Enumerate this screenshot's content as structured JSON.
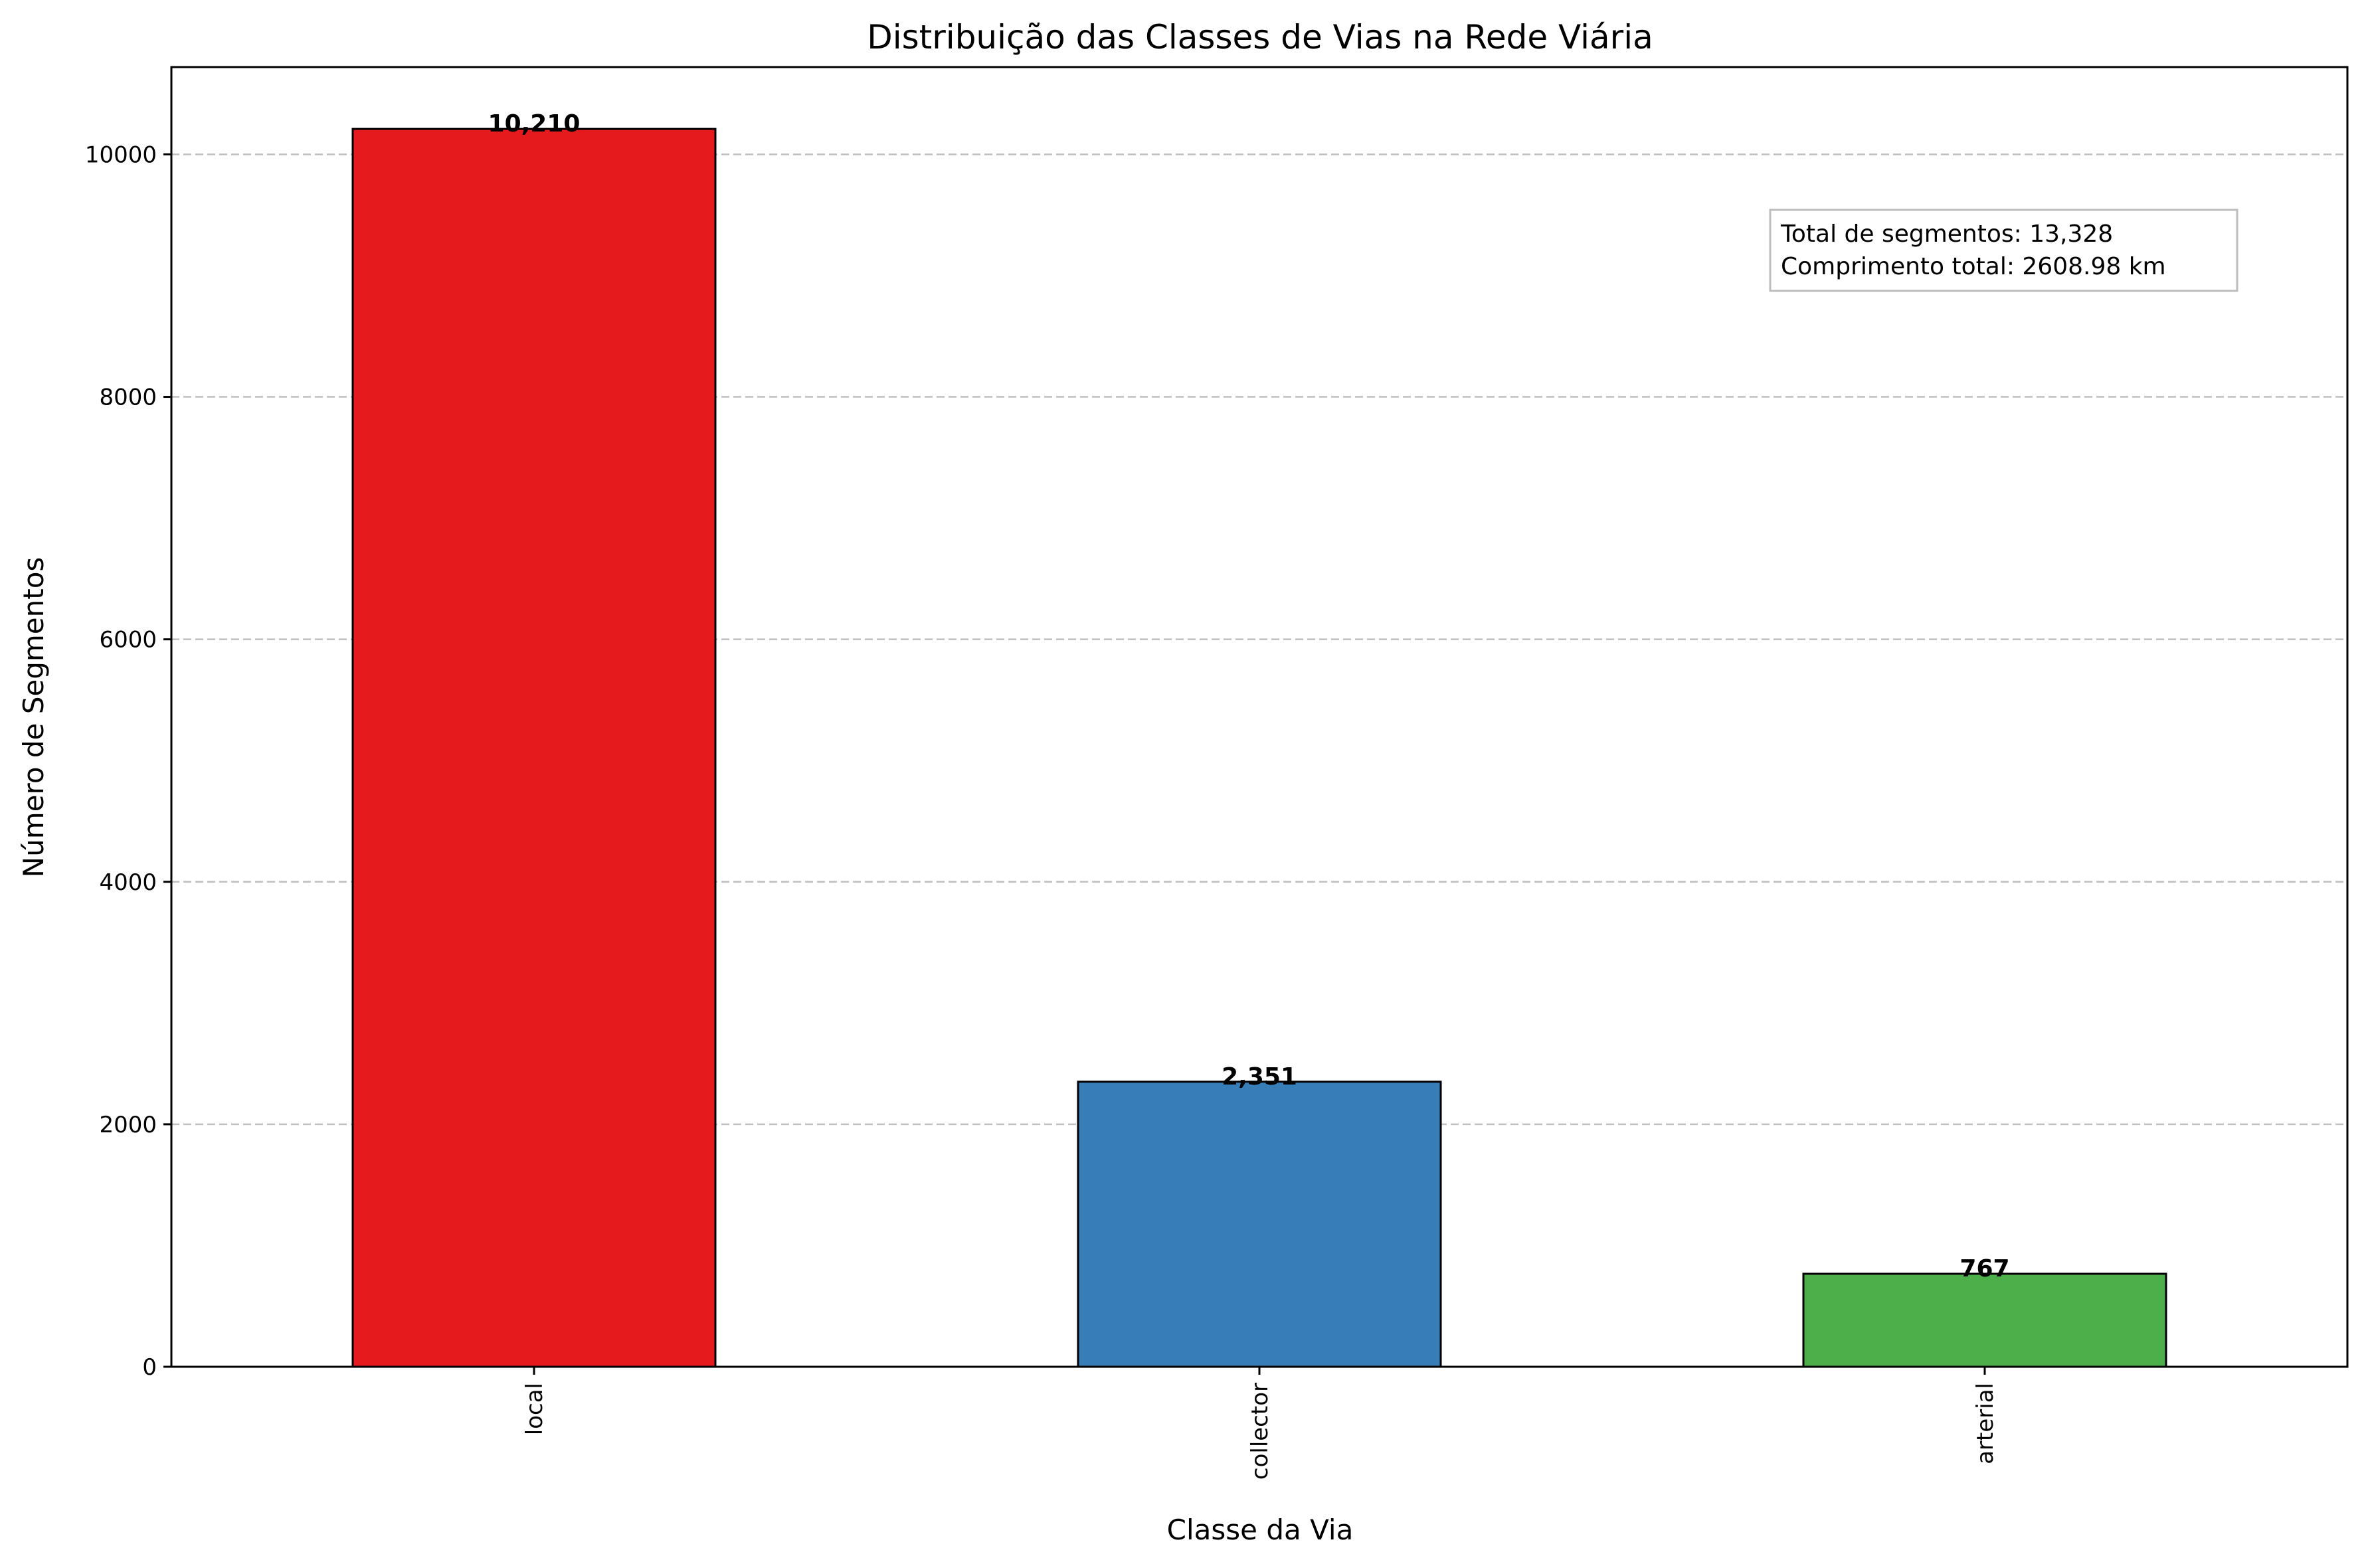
{
  "chart_data": {
    "type": "bar",
    "title": "Distribuição das Classes de Vias na Rede Viária",
    "xlabel": "Classe da Via",
    "ylabel": "Número de Segmentos",
    "categories": [
      "local",
      "collector",
      "arterial"
    ],
    "values": [
      10210,
      2351,
      767
    ],
    "value_labels": [
      "10,210",
      "2,351",
      "767"
    ],
    "colors": [
      "#e41a1c",
      "#377eb8",
      "#4daf4a"
    ],
    "ylim": [
      0,
      10720
    ],
    "yticks": [
      0,
      2000,
      4000,
      6000,
      8000,
      10000
    ],
    "grid": "y-dashed",
    "annotation": {
      "lines": [
        "Total de segmentos: 13,328",
        "Comprimento total: 2608.98 km"
      ],
      "placement": "top-right"
    }
  }
}
